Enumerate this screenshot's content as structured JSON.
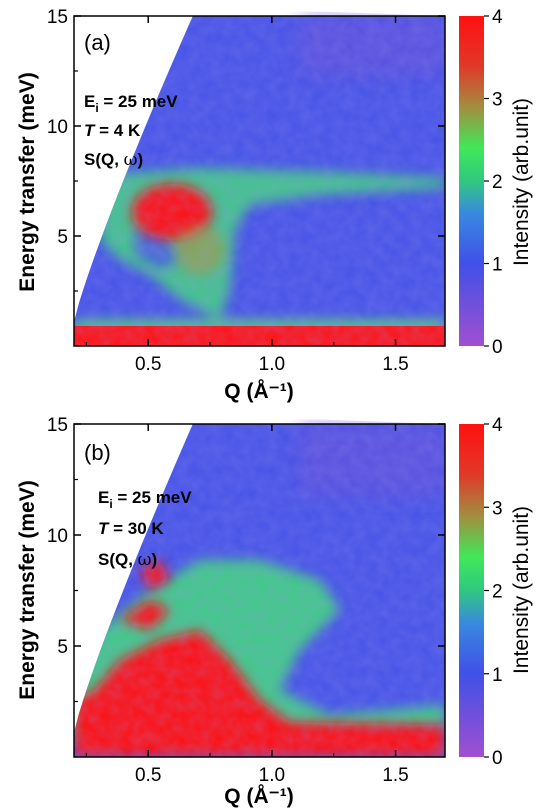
{
  "chart_data": [
    {
      "type": "heatmap",
      "panel_label": "(a)",
      "xlabel": "Q (Å⁻¹)",
      "ylabel": "Energy transfer (meV)",
      "xlim": [
        0.2,
        1.7
      ],
      "ylim": [
        0.0,
        15.0
      ],
      "x_ticks": [
        0.5,
        1.0,
        1.5
      ],
      "x_tick_labels": [
        "0.5",
        "1.0",
        "1.5"
      ],
      "y_ticks": [
        5,
        10,
        15
      ],
      "y_tick_labels": [
        "5",
        "10",
        "15"
      ],
      "annotations": [
        "E",
        "i",
        " = 25 meV",
        "T",
        " = 4 K",
        "S(Q, ",
        "ω",
        ")"
      ],
      "colorbar": {
        "label": "Intensity (arb.unit)",
        "range": [
          0,
          4
        ],
        "ticks": [
          "0",
          "1",
          "2",
          "3",
          "4"
        ]
      },
      "features": [
        {
          "name": "elastic line",
          "energy": 0.6,
          "intensity": 4
        },
        {
          "name": "inelastic excitation",
          "Q": 0.55,
          "energy": 6.0,
          "intensity": 4
        }
      ]
    },
    {
      "type": "heatmap",
      "panel_label": "(b)",
      "xlabel": "Q (Å⁻¹)",
      "ylabel": "Energy transfer (meV)",
      "xlim": [
        0.2,
        1.7
      ],
      "ylim": [
        0.0,
        15.0
      ],
      "x_ticks": [
        0.5,
        1.0,
        1.5
      ],
      "x_tick_labels": [
        "0.5",
        "1.0",
        "1.5"
      ],
      "y_ticks": [
        5,
        10,
        15
      ],
      "y_tick_labels": [
        "5",
        "10",
        "15"
      ],
      "annotations": [
        "E",
        "i",
        " = 25 meV",
        "T",
        " = 30 K",
        "S(Q, ",
        "ω",
        ")"
      ],
      "colorbar": {
        "label": "Intensity (arb.unit)",
        "range": [
          0,
          4
        ],
        "ticks": [
          "0",
          "1",
          "2",
          "3",
          "4"
        ]
      },
      "features": [
        {
          "name": "quasielastic scattering",
          "Q": 0.65,
          "energy": 2.0,
          "intensity": 4
        }
      ]
    }
  ],
  "colors": {
    "low": "#a050d0",
    "mid_low": "#4050e8",
    "mid": "#40e060",
    "high": "#ff1010"
  }
}
